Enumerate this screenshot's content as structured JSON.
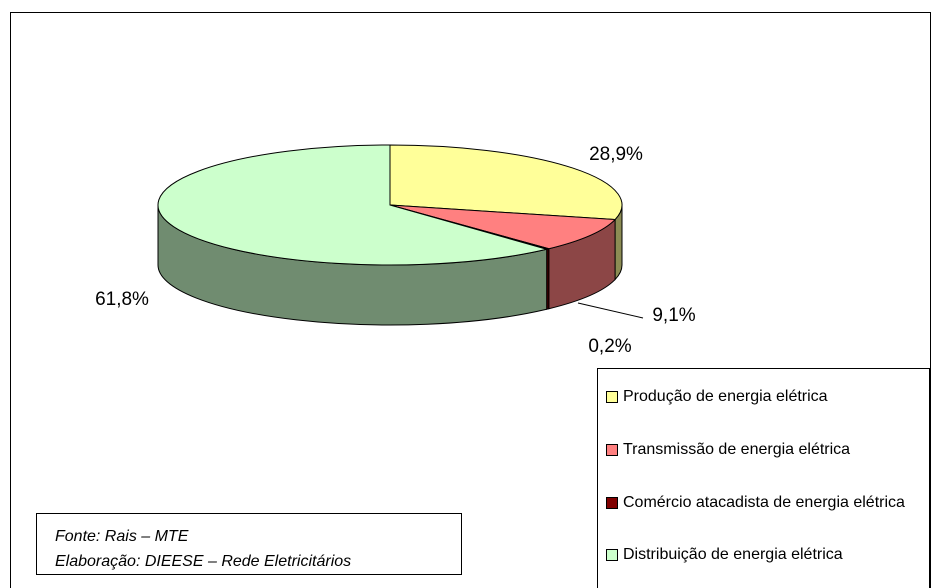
{
  "chart_data": {
    "type": "pie3d",
    "categories": [
      "Produção de energia elétrica",
      "Transmissão de energia elétrica",
      "Comércio atacadista de energia elétrica",
      "Distribuição de energia elétrica"
    ],
    "values": [
      28.9,
      9.1,
      0.2,
      61.8
    ],
    "value_labels": [
      "28,9%",
      "9,1%",
      "0,2%",
      "61,8%"
    ],
    "colors": [
      "#ffff99",
      "#ff8080",
      "#800000",
      "#ccffcc"
    ],
    "legend": "bottom-right"
  },
  "source": {
    "line1": "Fonte: Rais – MTE",
    "line2": "Elaboração: DIEESE – Rede Eletricitários"
  }
}
